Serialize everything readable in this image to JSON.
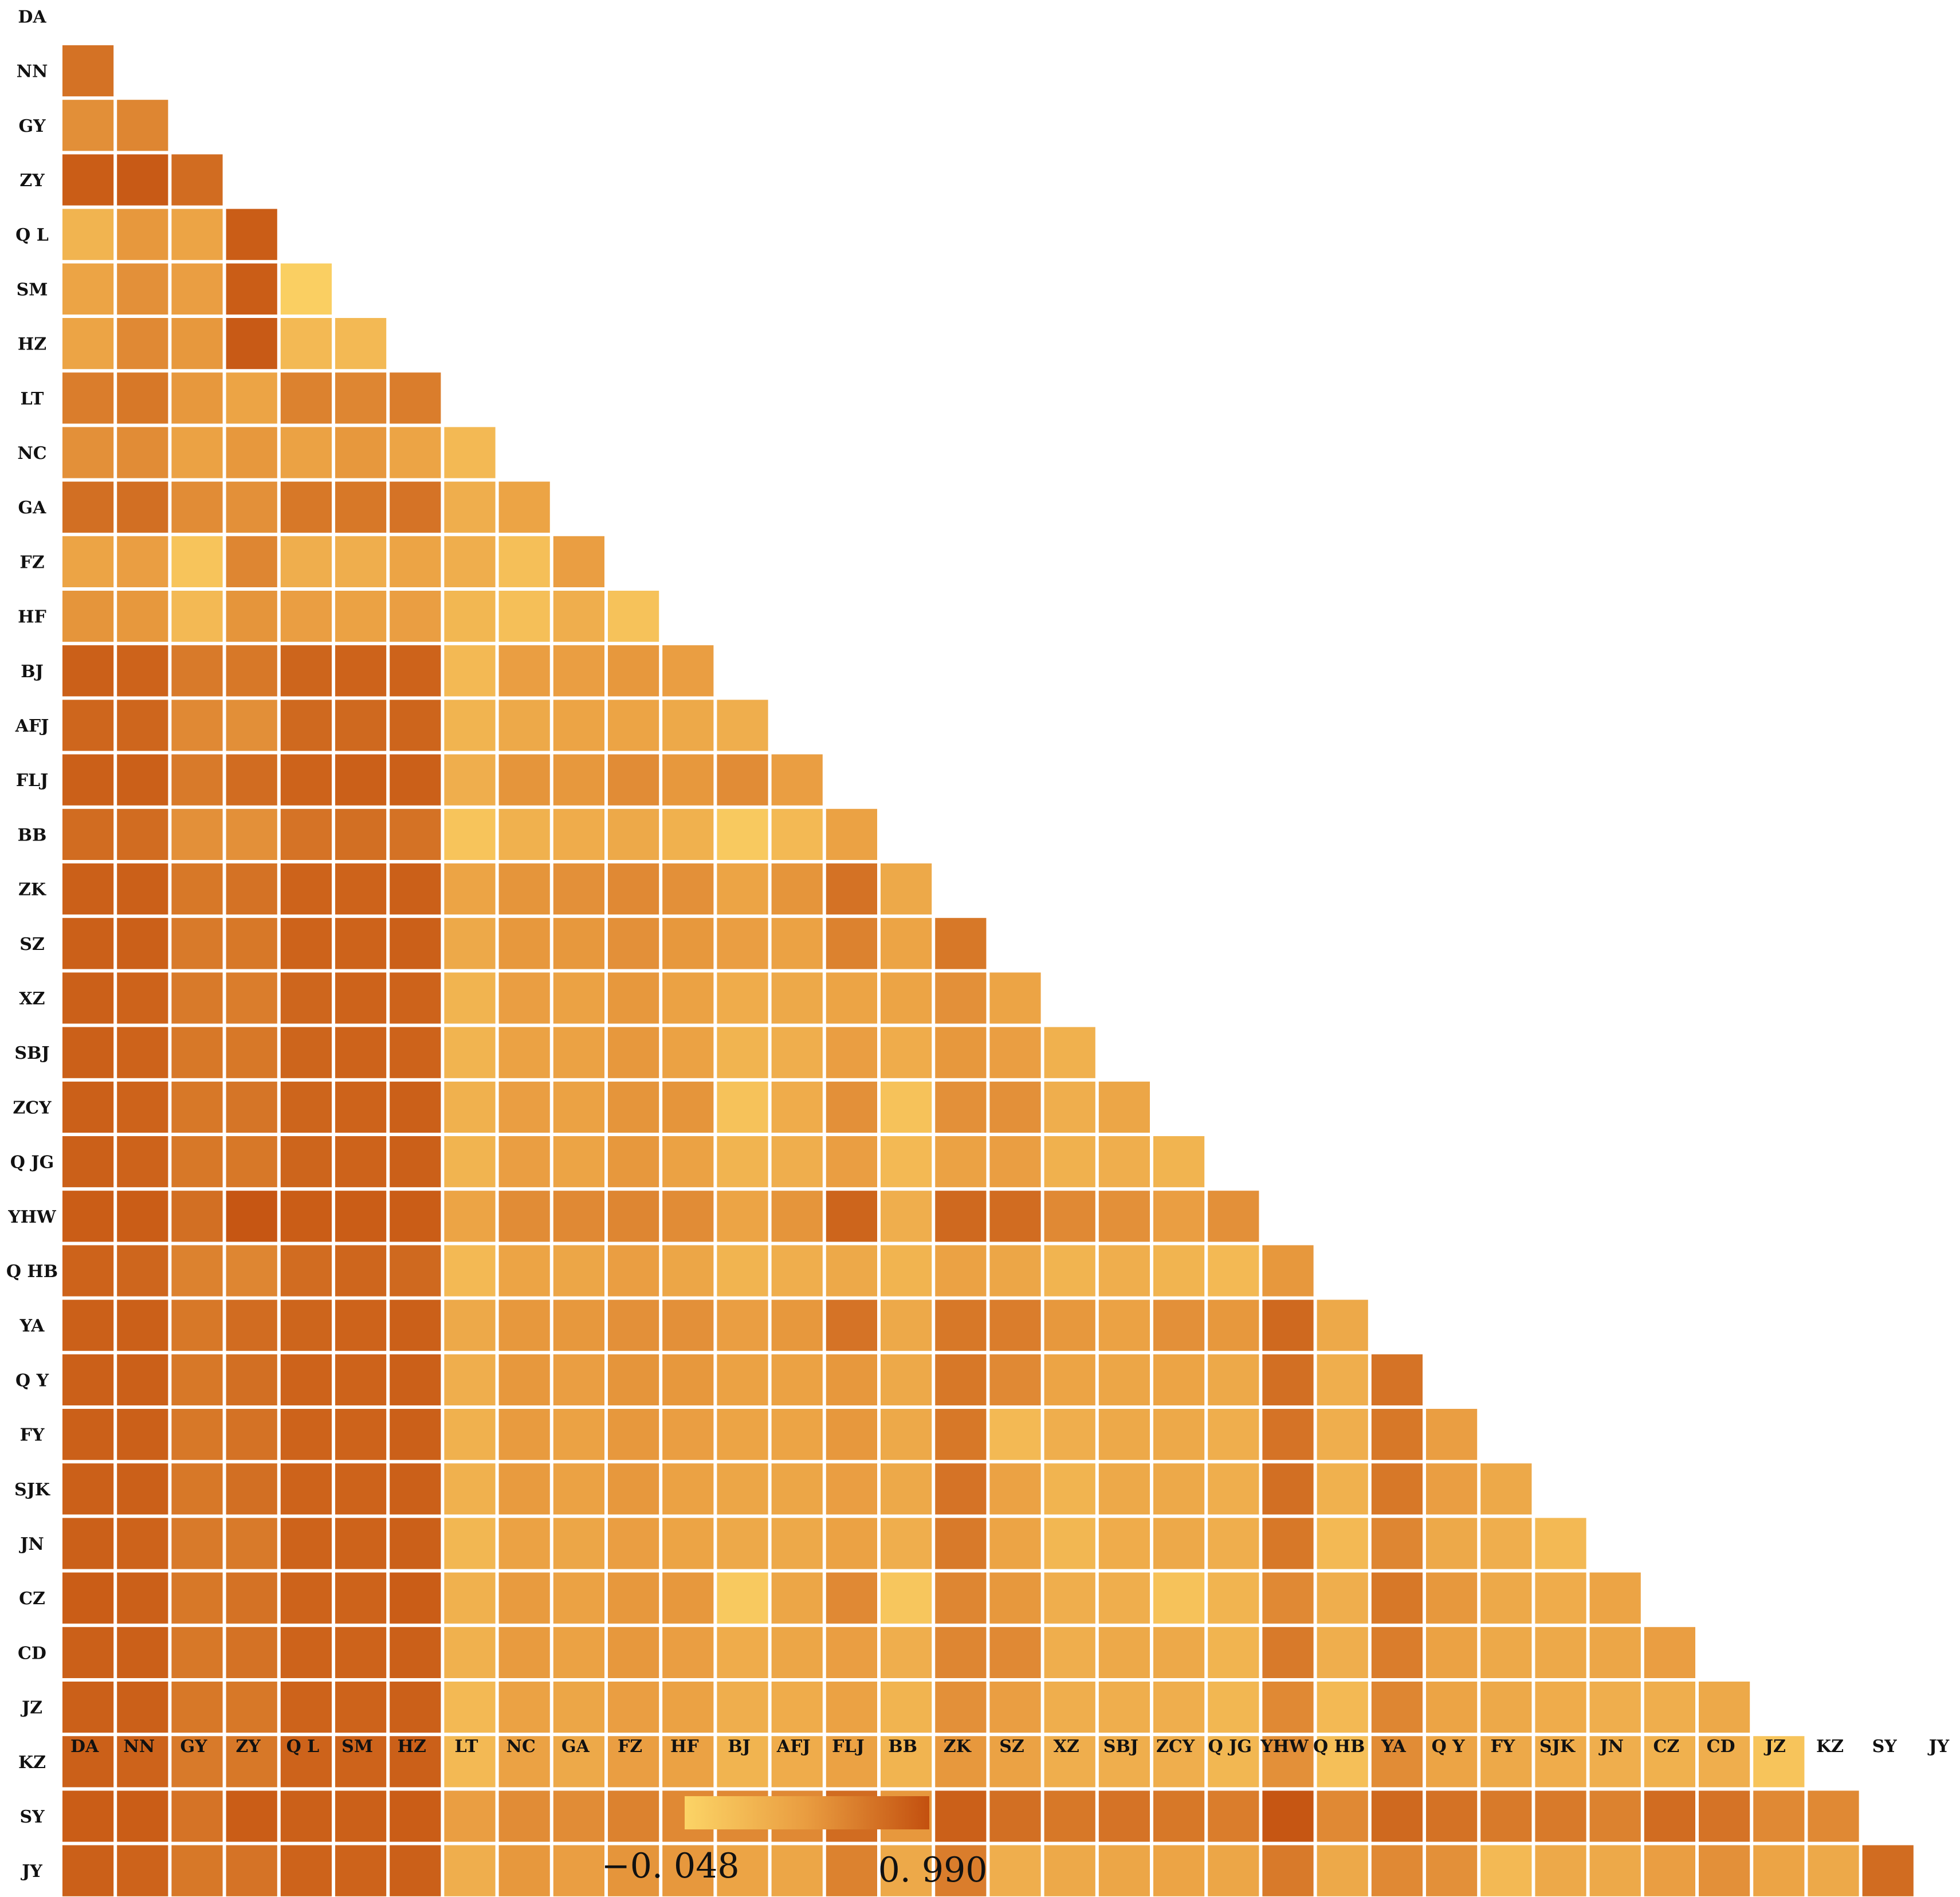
{
  "chart_data": {
    "type": "heatmap",
    "subtype": "lower-triangular correlation matrix",
    "labels": [
      "DA",
      "NN",
      "GY",
      "ZY",
      "Q L",
      "SM",
      "HZ",
      "LT",
      "NC",
      "GA",
      "FZ",
      "HF",
      "BJ",
      "AFJ",
      "FLJ",
      "BB",
      "ZK",
      "SZ",
      "XZ",
      "SBJ",
      "ZCY",
      "Q JG",
      "YHW",
      "Q HB",
      "YA",
      "Q Y",
      "FY",
      "SJK",
      "JN",
      "CZ",
      "CD",
      "JZ",
      "KZ",
      "SY",
      "JY"
    ],
    "colorscale": {
      "min": -0.048,
      "max": 0.99,
      "min_color": "#fcd466",
      "mid_color": "#e99c40",
      "max_color": "#c3500f"
    },
    "legend": {
      "min_label": "−0. 048",
      "max_label": "0. 990",
      "placement": "bottom-center"
    },
    "values": [
      [],
      [
        0.76
      ],
      [
        0.56,
        0.62
      ],
      [
        0.9,
        0.92,
        0.8
      ],
      [
        0.25,
        0.5,
        0.4,
        0.9
      ],
      [
        0.4,
        0.55,
        0.45,
        0.9,
        0.0
      ],
      [
        0.4,
        0.6,
        0.5,
        0.92,
        0.2,
        0.2
      ],
      [
        0.68,
        0.72,
        0.5,
        0.4,
        0.65,
        0.62,
        0.68
      ],
      [
        0.55,
        0.58,
        0.42,
        0.5,
        0.42,
        0.5,
        0.4,
        0.2
      ],
      [
        0.78,
        0.78,
        0.58,
        0.55,
        0.72,
        0.72,
        0.75,
        0.3,
        0.4
      ],
      [
        0.4,
        0.45,
        0.1,
        0.62,
        0.3,
        0.3,
        0.4,
        0.3,
        0.15,
        0.45
      ],
      [
        0.52,
        0.5,
        0.2,
        0.52,
        0.45,
        0.42,
        0.45,
        0.22,
        0.15,
        0.3,
        0.12
      ],
      [
        0.88,
        0.86,
        0.7,
        0.72,
        0.85,
        0.86,
        0.86,
        0.2,
        0.45,
        0.45,
        0.5,
        0.45
      ],
      [
        0.84,
        0.84,
        0.6,
        0.56,
        0.82,
        0.82,
        0.85,
        0.25,
        0.35,
        0.4,
        0.4,
        0.35,
        0.3
      ],
      [
        0.88,
        0.88,
        0.7,
        0.8,
        0.86,
        0.88,
        0.88,
        0.3,
        0.52,
        0.5,
        0.58,
        0.5,
        0.58,
        0.45
      ],
      [
        0.8,
        0.8,
        0.55,
        0.55,
        0.75,
        0.78,
        0.76,
        0.1,
        0.28,
        0.32,
        0.35,
        0.28,
        0.05,
        0.2,
        0.42
      ],
      [
        0.88,
        0.88,
        0.72,
        0.76,
        0.86,
        0.86,
        0.88,
        0.4,
        0.52,
        0.55,
        0.6,
        0.55,
        0.4,
        0.52,
        0.76,
        0.35
      ],
      [
        0.88,
        0.88,
        0.7,
        0.72,
        0.86,
        0.86,
        0.88,
        0.35,
        0.5,
        0.5,
        0.55,
        0.5,
        0.45,
        0.42,
        0.65,
        0.4,
        0.72
      ],
      [
        0.88,
        0.86,
        0.7,
        0.68,
        0.84,
        0.86,
        0.86,
        0.25,
        0.45,
        0.42,
        0.5,
        0.42,
        0.32,
        0.35,
        0.4,
        0.4,
        0.55,
        0.4
      ],
      [
        0.88,
        0.86,
        0.72,
        0.72,
        0.85,
        0.86,
        0.86,
        0.25,
        0.42,
        0.42,
        0.5,
        0.42,
        0.25,
        0.3,
        0.45,
        0.32,
        0.5,
        0.45,
        0.28
      ],
      [
        0.88,
        0.86,
        0.72,
        0.74,
        0.85,
        0.86,
        0.88,
        0.28,
        0.45,
        0.42,
        0.52,
        0.52,
        0.12,
        0.32,
        0.55,
        0.12,
        0.55,
        0.55,
        0.3,
        0.38
      ],
      [
        0.88,
        0.86,
        0.72,
        0.72,
        0.85,
        0.86,
        0.88,
        0.25,
        0.45,
        0.4,
        0.5,
        0.42,
        0.25,
        0.3,
        0.45,
        0.2,
        0.42,
        0.45,
        0.28,
        0.3,
        0.25
      ],
      [
        0.9,
        0.9,
        0.78,
        0.95,
        0.9,
        0.9,
        0.9,
        0.4,
        0.58,
        0.6,
        0.62,
        0.58,
        0.4,
        0.52,
        0.85,
        0.3,
        0.82,
        0.8,
        0.6,
        0.55,
        0.45,
        0.55
      ],
      [
        0.86,
        0.84,
        0.65,
        0.62,
        0.8,
        0.84,
        0.82,
        0.2,
        0.4,
        0.38,
        0.45,
        0.38,
        0.25,
        0.3,
        0.35,
        0.25,
        0.42,
        0.38,
        0.25,
        0.3,
        0.25,
        0.2,
        0.5
      ],
      [
        0.88,
        0.88,
        0.72,
        0.8,
        0.85,
        0.86,
        0.88,
        0.35,
        0.5,
        0.5,
        0.55,
        0.55,
        0.45,
        0.5,
        0.75,
        0.35,
        0.72,
        0.68,
        0.5,
        0.42,
        0.55,
        0.5,
        0.82,
        0.35
      ],
      [
        0.88,
        0.88,
        0.72,
        0.78,
        0.86,
        0.86,
        0.88,
        0.3,
        0.5,
        0.45,
        0.52,
        0.5,
        0.42,
        0.42,
        0.5,
        0.35,
        0.72,
        0.6,
        0.4,
        0.38,
        0.4,
        0.35,
        0.78,
        0.3,
        0.75
      ],
      [
        0.88,
        0.88,
        0.72,
        0.76,
        0.86,
        0.86,
        0.88,
        0.28,
        0.48,
        0.42,
        0.5,
        0.45,
        0.4,
        0.4,
        0.5,
        0.35,
        0.72,
        0.2,
        0.3,
        0.35,
        0.35,
        0.3,
        0.75,
        0.3,
        0.72,
        0.45
      ],
      [
        0.88,
        0.88,
        0.72,
        0.78,
        0.86,
        0.86,
        0.88,
        0.28,
        0.48,
        0.42,
        0.5,
        0.42,
        0.38,
        0.38,
        0.45,
        0.35,
        0.75,
        0.42,
        0.25,
        0.35,
        0.35,
        0.3,
        0.78,
        0.28,
        0.72,
        0.45,
        0.35
      ],
      [
        0.88,
        0.86,
        0.7,
        0.7,
        0.86,
        0.86,
        0.88,
        0.22,
        0.42,
        0.38,
        0.45,
        0.4,
        0.35,
        0.35,
        0.42,
        0.3,
        0.7,
        0.4,
        0.22,
        0.32,
        0.35,
        0.3,
        0.72,
        0.2,
        0.62,
        0.35,
        0.3,
        0.2
      ],
      [
        0.9,
        0.88,
        0.72,
        0.76,
        0.86,
        0.86,
        0.9,
        0.28,
        0.48,
        0.42,
        0.5,
        0.5,
        0.05,
        0.38,
        0.6,
        0.08,
        0.62,
        0.5,
        0.3,
        0.3,
        0.12,
        0.25,
        0.6,
        0.3,
        0.72,
        0.5,
        0.35,
        0.32,
        0.4
      ],
      [
        0.88,
        0.88,
        0.72,
        0.76,
        0.86,
        0.86,
        0.88,
        0.28,
        0.48,
        0.42,
        0.5,
        0.45,
        0.32,
        0.38,
        0.45,
        0.3,
        0.62,
        0.6,
        0.3,
        0.35,
        0.35,
        0.25,
        0.7,
        0.3,
        0.68,
        0.42,
        0.35,
        0.35,
        0.38,
        0.45
      ],
      [
        0.88,
        0.88,
        0.72,
        0.72,
        0.86,
        0.86,
        0.88,
        0.2,
        0.42,
        0.38,
        0.45,
        0.42,
        0.3,
        0.32,
        0.42,
        0.25,
        0.55,
        0.45,
        0.3,
        0.3,
        0.3,
        0.22,
        0.6,
        0.2,
        0.62,
        0.4,
        0.35,
        0.32,
        0.3,
        0.3,
        0.35
      ],
      [
        0.88,
        0.86,
        0.7,
        0.72,
        0.86,
        0.86,
        0.88,
        0.2,
        0.42,
        0.35,
        0.45,
        0.42,
        0.25,
        0.32,
        0.42,
        0.25,
        0.5,
        0.42,
        0.3,
        0.3,
        0.3,
        0.22,
        0.55,
        0.15,
        0.58,
        0.4,
        0.35,
        0.32,
        0.3,
        0.28,
        0.3,
        0.1
      ],
      [
        0.9,
        0.9,
        0.75,
        0.9,
        0.88,
        0.88,
        0.9,
        0.45,
        0.58,
        0.58,
        0.65,
        0.6,
        0.6,
        0.6,
        0.8,
        0.5,
        0.88,
        0.78,
        0.72,
        0.75,
        0.72,
        0.68,
        0.95,
        0.6,
        0.82,
        0.76,
        0.7,
        0.7,
        0.65,
        0.8,
        0.75,
        0.6,
        0.6
      ],
      [
        0.88,
        0.86,
        0.72,
        0.75,
        0.86,
        0.86,
        0.88,
        0.3,
        0.5,
        0.45,
        0.52,
        0.5,
        0.4,
        0.38,
        0.65,
        0.35,
        0.68,
        0.3,
        0.35,
        0.38,
        0.4,
        0.38,
        0.7,
        0.35,
        0.6,
        0.55,
        0.2,
        0.35,
        0.35,
        0.45,
        0.55,
        0.4,
        0.35,
        0.8
      ]
    ]
  }
}
